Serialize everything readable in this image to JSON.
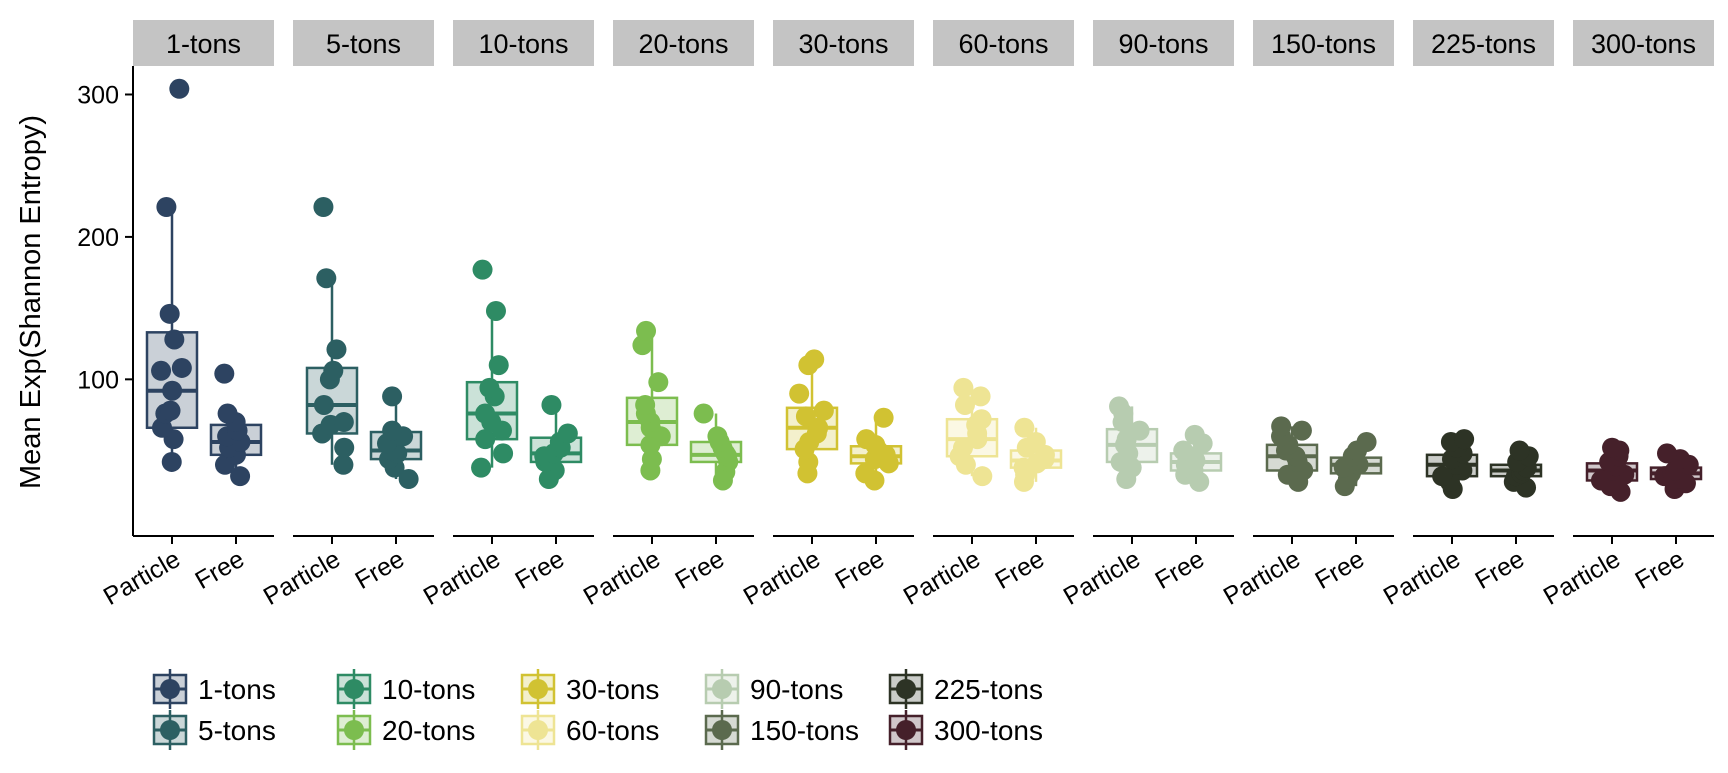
{
  "chart_data": {
    "type": "box",
    "ylabel": "Mean Exp(Shannon Entropy)",
    "yticks": [
      100,
      200,
      300
    ],
    "ylim": [
      -10,
      320
    ],
    "categories": [
      "Particle",
      "Free"
    ],
    "legend_position": "bottom",
    "facets": [
      {
        "name": "1-tons",
        "color": "#2d4361",
        "groups": [
          {
            "category": "Particle",
            "box": {
              "q1": 66,
              "median": 92,
              "q3": 133,
              "min": 42,
              "max": 221
            },
            "points": [
              42,
              58,
              66,
              76,
              78,
              92,
              106,
              108,
              128,
              146,
              221,
              304
            ]
          },
          {
            "category": "Free",
            "box": {
              "q1": 47,
              "median": 56,
              "q3": 68,
              "min": 32,
              "max": 76
            },
            "points": [
              32,
              40,
              47,
              52,
              56,
              60,
              64,
              70,
              76,
              104
            ]
          }
        ]
      },
      {
        "name": "5-tons",
        "color": "#2c5f62",
        "groups": [
          {
            "category": "Particle",
            "box": {
              "q1": 62,
              "median": 82,
              "q3": 108,
              "min": 40,
              "max": 171
            },
            "points": [
              40,
              52,
              62,
              68,
              70,
              82,
              100,
              106,
              121,
              171,
              221
            ]
          },
          {
            "category": "Free",
            "box": {
              "q1": 44,
              "median": 50,
              "q3": 63,
              "min": 30,
              "max": 88
            },
            "points": [
              30,
              38,
              44,
              48,
              50,
              55,
              60,
              64,
              88
            ]
          }
        ]
      },
      {
        "name": "10-tons",
        "color": "#2e8b64",
        "groups": [
          {
            "category": "Particle",
            "box": {
              "q1": 58,
              "median": 76,
              "q3": 98,
              "min": 38,
              "max": 148
            },
            "points": [
              38,
              48,
              58,
              64,
              70,
              76,
              88,
              94,
              110,
              148,
              177
            ]
          },
          {
            "category": "Free",
            "box": {
              "q1": 42,
              "median": 48,
              "q3": 59,
              "min": 30,
              "max": 82
            },
            "points": [
              30,
              36,
              42,
              46,
              48,
              52,
              56,
              62,
              82
            ]
          }
        ]
      },
      {
        "name": "20-tons",
        "color": "#7cbd4f",
        "groups": [
          {
            "category": "Particle",
            "box": {
              "q1": 54,
              "median": 70,
              "q3": 87,
              "min": 36,
              "max": 134
            },
            "points": [
              36,
              44,
              54,
              60,
              66,
              70,
              76,
              82,
              98,
              124,
              134
            ]
          },
          {
            "category": "Free",
            "box": {
              "q1": 42,
              "median": 47,
              "q3": 56,
              "min": 29,
              "max": 76
            },
            "points": [
              29,
              35,
              42,
              46,
              48,
              52,
              56,
              60,
              76
            ]
          }
        ]
      },
      {
        "name": "30-tons",
        "color": "#d1c232",
        "groups": [
          {
            "category": "Particle",
            "box": {
              "q1": 51,
              "median": 66,
              "q3": 80,
              "min": 34,
              "max": 114
            },
            "points": [
              34,
              42,
              51,
              56,
              62,
              66,
              74,
              78,
              90,
              110,
              114
            ]
          },
          {
            "category": "Free",
            "box": {
              "q1": 41,
              "median": 46,
              "q3": 53,
              "min": 29,
              "max": 73
            },
            "points": [
              29,
              34,
              41,
              44,
              47,
              50,
              54,
              58,
              73
            ]
          }
        ]
      },
      {
        "name": "60-tons",
        "color": "#eee494",
        "groups": [
          {
            "category": "Particle",
            "box": {
              "q1": 46,
              "median": 58,
              "q3": 72,
              "min": 32,
              "max": 94
            },
            "points": [
              32,
              40,
              46,
              52,
              58,
              62,
              68,
              72,
              82,
              88,
              94
            ]
          },
          {
            "category": "Free",
            "box": {
              "q1": 38,
              "median": 43,
              "q3": 50,
              "min": 28,
              "max": 66
            },
            "points": [
              28,
              33,
              38,
              41,
              44,
              47,
              52,
              56,
              66
            ]
          }
        ]
      },
      {
        "name": "90-tons",
        "color": "#b7ccb0",
        "groups": [
          {
            "category": "Particle",
            "box": {
              "q1": 42,
              "median": 54,
              "q3": 65,
              "min": 30,
              "max": 81
            },
            "points": [
              30,
              38,
              42,
              48,
              54,
              58,
              64,
              70,
              76,
              81
            ]
          },
          {
            "category": "Free",
            "box": {
              "q1": 36,
              "median": 42,
              "q3": 48,
              "min": 28,
              "max": 61
            },
            "points": [
              28,
              33,
              36,
              40,
              43,
              46,
              50,
              55,
              61
            ]
          }
        ]
      },
      {
        "name": "150-tons",
        "color": "#5b6a4e",
        "groups": [
          {
            "category": "Particle",
            "box": {
              "q1": 36,
              "median": 46,
              "q3": 54,
              "min": 28,
              "max": 67
            },
            "points": [
              28,
              33,
              36,
              42,
              46,
              50,
              54,
              60,
              64,
              67
            ]
          },
          {
            "category": "Free",
            "box": {
              "q1": 34,
              "median": 40,
              "q3": 45,
              "min": 25,
              "max": 56
            },
            "points": [
              25,
              30,
              34,
              38,
              40,
              43,
              46,
              50,
              56
            ]
          }
        ]
      },
      {
        "name": "225-tons",
        "color": "#2d3325",
        "groups": [
          {
            "category": "Particle",
            "box": {
              "q1": 32,
              "median": 40,
              "q3": 47,
              "min": 23,
              "max": 58
            },
            "points": [
              23,
              28,
              32,
              36,
              40,
              44,
              48,
              52,
              56,
              58
            ]
          },
          {
            "category": "Free",
            "box": {
              "q1": 32,
              "median": 36,
              "q3": 40,
              "min": 24,
              "max": 50
            },
            "points": [
              24,
              28,
              32,
              34,
              36,
              38,
              42,
              46,
              50
            ]
          }
        ]
      },
      {
        "name": "300-tons",
        "color": "#45202a",
        "groups": [
          {
            "category": "Particle",
            "box": {
              "q1": 29,
              "median": 36,
              "q3": 41,
              "min": 21,
              "max": 52
            },
            "points": [
              21,
              25,
              29,
              33,
              36,
              39,
              42,
              46,
              50,
              52
            ]
          },
          {
            "category": "Free",
            "box": {
              "q1": 30,
              "median": 34,
              "q3": 38,
              "min": 23,
              "max": 48
            },
            "points": [
              23,
              27,
              30,
              32,
              34,
              36,
              40,
              44,
              48
            ]
          }
        ]
      }
    ],
    "legend": [
      "1-tons",
      "5-tons",
      "10-tons",
      "20-tons",
      "30-tons",
      "60-tons",
      "90-tons",
      "150-tons",
      "225-tons",
      "300-tons"
    ]
  }
}
